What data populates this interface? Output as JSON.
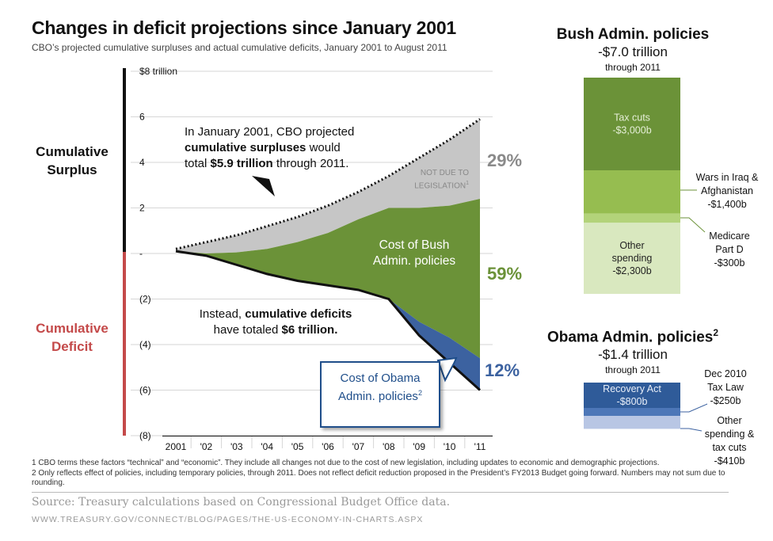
{
  "title": "Changes in deficit projections since January 2001",
  "subtitle": "CBO’s projected cumulative surpluses and actual cumulative deficits, January 2001 to August 2011",
  "side_labels": {
    "surplus": "Cumulative Surplus",
    "deficit": "Cumulative Deficit"
  },
  "annotations": {
    "projection_line1": "In January 2001, CBO projected",
    "projection_bold": "cumulative surpluses",
    "projection_line2_rest": " would",
    "projection_line3_a": "total ",
    "projection_line3_bold": "$5.9 trillion",
    "projection_line3_b": " through 2011.",
    "not_due_line1": "NOT DUE TO",
    "not_due_line2": "LEGISLATION",
    "not_due_sup": "1",
    "bush_cost": "Cost of Bush Admin. policies",
    "deficit_line1_a": "Instead, ",
    "deficit_line1_bold": "cumulative deficits",
    "deficit_line2_a": "have totaled ",
    "deficit_line2_bold": "$6 trillion.",
    "obama_cost": "Cost of Obama Admin. policies",
    "obama_sup": "2"
  },
  "percentages": {
    "not_due": "29%",
    "bush": "59%",
    "obama": "12%"
  },
  "colors": {
    "gray_area": "#c6c6c6",
    "green_area": "#6b9238",
    "blue_area": "#3c62a0",
    "deficit_red": "#c44a4a",
    "pct_gray": "#8a8a8a",
    "pct_green": "#6b9238",
    "pct_blue": "#3c62a0",
    "bush_tax": "#6b9238",
    "bush_wars": "#96bd50",
    "bush_medicare": "#b3d37a",
    "bush_other": "#d9e8bf",
    "obama_recovery": "#2f5b99",
    "obama_tax": "#4d77b8",
    "obama_other": "#b8c6e4"
  },
  "chart_data": {
    "type": "area",
    "x": [
      2001,
      2002,
      2003,
      2004,
      2005,
      2006,
      2007,
      2008,
      2009,
      2010,
      2011
    ],
    "tick_labels": [
      "2001",
      "'02",
      "'03",
      "'04",
      "'05",
      "'06",
      "'07",
      "'08",
      "'09",
      "'10",
      "'11"
    ],
    "ylim": [
      -8,
      8
    ],
    "y_ticks": [
      8,
      6,
      4,
      2,
      0,
      -2,
      -4,
      -6,
      -8
    ],
    "y_tick_labels": [
      "$8 trillion",
      "6",
      "4",
      "2",
      "-",
      "(2)",
      "(4)",
      "(6)",
      "(8)"
    ],
    "series": [
      {
        "name": "CBO projected cumulative surpluses",
        "style": "dotted",
        "values": [
          0.2,
          0.5,
          0.8,
          1.2,
          1.6,
          2.1,
          2.7,
          3.4,
          4.2,
          5.0,
          5.9
        ]
      },
      {
        "name": "cumulative deficits",
        "style": "solid",
        "values": [
          0.1,
          -0.1,
          -0.5,
          -0.9,
          -1.2,
          -1.4,
          -1.6,
          -2.0,
          -3.6,
          -4.8,
          -6.0
        ]
      },
      {
        "name": "Bush policies upper boundary",
        "style": "boundary",
        "values": [
          0.1,
          0.0,
          0.05,
          0.2,
          0.5,
          0.9,
          1.5,
          2.0,
          2.0,
          2.1,
          2.4
        ]
      },
      {
        "name": "Obama policies upper boundary",
        "style": "boundary",
        "values": [
          0.1,
          -0.1,
          -0.5,
          -0.9,
          -1.2,
          -1.4,
          -1.6,
          -2.0,
          -3.0,
          -3.7,
          -4.6
        ]
      }
    ]
  },
  "bush_panel": {
    "title": "Bush Admin. policies",
    "total": "-$7.0 trillion",
    "period": "through 2011",
    "segments": [
      {
        "label": "Tax cuts\n-$3,000b",
        "value": 3000,
        "inside": true
      },
      {
        "label": "Wars in Iraq  &\nAfghanistan\n-$1,400b",
        "value": 1400,
        "inside": false
      },
      {
        "label": "Medicare\nPart D\n-$300b",
        "value": 300,
        "inside": false
      },
      {
        "label": "Other\nspending\n-$2,300b",
        "value": 2300,
        "inside": true
      }
    ]
  },
  "obama_panel": {
    "title": "Obama Admin. policies",
    "title_sup": "2",
    "total": "-$1.4 trillion",
    "period": "through 2011",
    "segments": [
      {
        "label": "Recovery Act\n-$800b",
        "value": 800,
        "inside": true
      },
      {
        "label": "Dec 2010\nTax Law\n-$250b",
        "value": 250,
        "inside": false
      },
      {
        "label": "Other\nspending &\ntax cuts\n-$410b",
        "value": 410,
        "inside": false
      }
    ]
  },
  "footnotes": [
    "1 CBO terms these factors “technical” and “economic”. They include all changes not due to the cost of new legislation, including updates to economic and demographic projections.",
    "2 Only reflects effect of policies, including temporary policies, through 2011. Does not reflect deficit reduction proposed in the President’s FY2013 Budget going forward. Numbers may not sum due to rounding."
  ],
  "source": "Source: Treasury calculations based on Congressional Budget Office data.",
  "url": "WWW.TREASURY.GOV/CONNECT/BLOG/PAGES/THE-US-ECONOMY-IN-CHARTS.ASPX"
}
